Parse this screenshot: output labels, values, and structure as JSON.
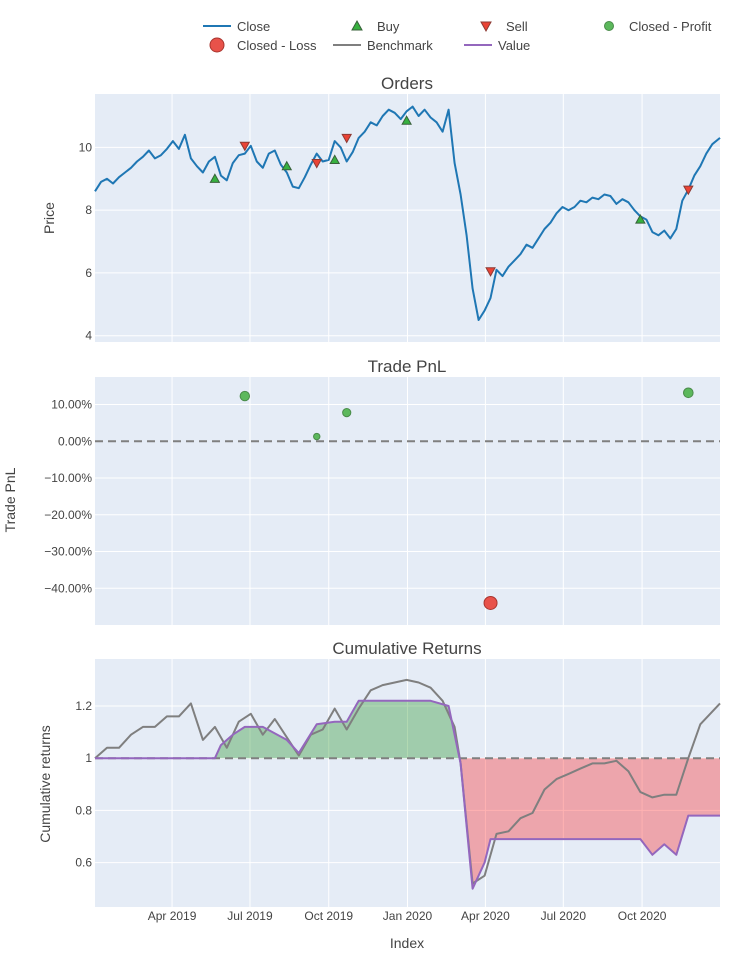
{
  "legend": {
    "items": [
      {
        "label": "Close",
        "symbol": "line",
        "color": "#1f77b4"
      },
      {
        "label": "Buy",
        "symbol": "triangle-up",
        "color": "#37b13f",
        "stroke": "#38603a"
      },
      {
        "label": "Sell",
        "symbol": "triangle-down",
        "color": "#ea4335",
        "stroke": "#8d3a33"
      },
      {
        "label": "Closed - Profit",
        "symbol": "circle",
        "color": "#5cb85c",
        "stroke": "#4a8b4a"
      },
      {
        "label": "Closed - Loss",
        "symbol": "circle-large",
        "color": "#e8524a",
        "stroke": "#a8342e"
      },
      {
        "label": "Benchmark",
        "symbol": "line",
        "color": "#7f7f7f"
      },
      {
        "label": "Value",
        "symbol": "line",
        "color": "#9467bd"
      }
    ]
  },
  "colors": {
    "plot_bg": "#e5ecf6",
    "grid": "#ffffff",
    "close": "#1f77b4",
    "benchmark": "#7f7f7f",
    "value": "#9467bd",
    "profit_fill": "rgba(0,128,0,0.3)",
    "loss_fill": "rgba(255,0,0,0.3)",
    "zero_line": "#7f7f7f",
    "text": "#444444",
    "title_text": "#444444"
  },
  "x_axis": {
    "title": "Index",
    "tick_labels": [
      "Apr 2019",
      "Jul 2019",
      "Oct 2019",
      "Jan 2020",
      "Apr 2020",
      "Jul 2020",
      "Oct 2020"
    ],
    "tick_dates": [
      "2019-04-01",
      "2019-07-01",
      "2019-10-01",
      "2020-01-01",
      "2020-04-01",
      "2020-07-01",
      "2020-10-01"
    ],
    "range": [
      "2019-01-01",
      "2020-12-31"
    ]
  },
  "chart_data": [
    {
      "type": "line",
      "title": "Orders",
      "ylabel": "Price",
      "ylim": [
        3.8,
        11.7
      ],
      "y_ticks": [
        4,
        6,
        8,
        10
      ],
      "y_tick_labels": [
        "4",
        "6",
        "8",
        "10"
      ],
      "grid": true,
      "series": [
        {
          "name": "Close",
          "x": [
            "2019-01-01",
            "2019-01-08",
            "2019-01-15",
            "2019-01-22",
            "2019-01-29",
            "2019-02-05",
            "2019-02-12",
            "2019-02-19",
            "2019-02-26",
            "2019-03-05",
            "2019-03-12",
            "2019-03-19",
            "2019-03-26",
            "2019-04-02",
            "2019-04-09",
            "2019-04-16",
            "2019-04-23",
            "2019-04-30",
            "2019-05-07",
            "2019-05-14",
            "2019-05-21",
            "2019-05-28",
            "2019-06-04",
            "2019-06-11",
            "2019-06-18",
            "2019-06-25",
            "2019-07-02",
            "2019-07-09",
            "2019-07-16",
            "2019-07-23",
            "2019-07-30",
            "2019-08-06",
            "2019-08-13",
            "2019-08-20",
            "2019-08-27",
            "2019-09-03",
            "2019-09-10",
            "2019-09-17",
            "2019-09-24",
            "2019-10-01",
            "2019-10-08",
            "2019-10-15",
            "2019-10-22",
            "2019-10-29",
            "2019-11-05",
            "2019-11-12",
            "2019-11-19",
            "2019-11-26",
            "2019-12-03",
            "2019-12-10",
            "2019-12-17",
            "2019-12-24",
            "2019-12-31",
            "2020-01-07",
            "2020-01-14",
            "2020-01-21",
            "2020-01-28",
            "2020-02-04",
            "2020-02-11",
            "2020-02-18",
            "2020-02-25",
            "2020-03-03",
            "2020-03-10",
            "2020-03-17",
            "2020-03-24",
            "2020-03-31",
            "2020-04-07",
            "2020-04-14",
            "2020-04-21",
            "2020-04-28",
            "2020-05-05",
            "2020-05-12",
            "2020-05-19",
            "2020-05-26",
            "2020-06-02",
            "2020-06-09",
            "2020-06-16",
            "2020-06-23",
            "2020-06-30",
            "2020-07-07",
            "2020-07-14",
            "2020-07-21",
            "2020-07-28",
            "2020-08-04",
            "2020-08-11",
            "2020-08-18",
            "2020-08-25",
            "2020-09-01",
            "2020-09-08",
            "2020-09-15",
            "2020-09-22",
            "2020-09-29",
            "2020-10-06",
            "2020-10-13",
            "2020-10-20",
            "2020-10-27",
            "2020-11-03",
            "2020-11-10",
            "2020-11-17",
            "2020-11-24",
            "2020-12-01",
            "2020-12-08",
            "2020-12-15",
            "2020-12-22",
            "2020-12-31"
          ],
          "values": [
            8.6,
            8.9,
            9.0,
            8.85,
            9.05,
            9.2,
            9.35,
            9.55,
            9.7,
            9.9,
            9.65,
            9.75,
            9.95,
            10.2,
            9.95,
            10.4,
            9.65,
            9.4,
            9.2,
            9.55,
            9.7,
            9.1,
            8.95,
            9.5,
            9.75,
            9.8,
            10.05,
            9.55,
            9.35,
            9.8,
            9.9,
            9.45,
            9.2,
            8.75,
            8.7,
            9.05,
            9.45,
            9.8,
            9.55,
            9.6,
            10.2,
            10.0,
            9.55,
            9.85,
            10.3,
            10.5,
            10.8,
            10.7,
            11.0,
            11.2,
            11.1,
            10.9,
            11.15,
            11.3,
            11.0,
            11.2,
            10.95,
            10.8,
            10.5,
            11.2,
            9.5,
            8.5,
            7.2,
            5.5,
            4.5,
            4.8,
            5.2,
            6.1,
            5.9,
            6.2,
            6.4,
            6.6,
            6.9,
            6.8,
            7.1,
            7.4,
            7.6,
            7.9,
            8.1,
            8.0,
            8.1,
            8.3,
            8.25,
            8.4,
            8.35,
            8.5,
            8.45,
            8.2,
            8.35,
            8.25,
            8.0,
            7.8,
            7.7,
            7.3,
            7.2,
            7.35,
            7.1,
            7.4,
            8.3,
            8.65,
            9.1,
            9.4,
            9.8,
            10.1,
            10.3
          ]
        }
      ],
      "markers": {
        "Buy": {
          "x": [
            "2019-05-21",
            "2019-08-13",
            "2019-10-08",
            "2019-12-31",
            "2020-09-29"
          ],
          "values": [
            9.0,
            9.4,
            9.6,
            10.85,
            7.7
          ]
        },
        "Sell": {
          "x": [
            "2019-06-25",
            "2019-09-17",
            "2019-10-22",
            "2020-04-07",
            "2020-11-24"
          ],
          "values": [
            10.05,
            9.5,
            10.3,
            6.05,
            8.65
          ]
        }
      }
    },
    {
      "type": "scatter",
      "title": "Trade PnL",
      "ylabel": "Trade PnL",
      "ylim": [
        -0.5,
        0.175
      ],
      "y_ticks": [
        0.1,
        0.0,
        -0.1,
        -0.2,
        -0.3,
        -0.4
      ],
      "y_tick_labels": [
        "10.00%",
        "0.00%",
        "−10.00%",
        "−20.00%",
        "−30.00%",
        "−40.00%"
      ],
      "zero_line": "dashed",
      "series": [
        {
          "name": "Closed - Profit",
          "x": [
            "2019-06-25",
            "2019-09-17",
            "2019-10-22",
            "2020-11-24"
          ],
          "values": [
            0.123,
            0.013,
            0.078,
            0.132
          ]
        },
        {
          "name": "Closed - Loss",
          "x": [
            "2020-04-07"
          ],
          "values": [
            -0.44
          ]
        }
      ]
    },
    {
      "type": "area",
      "title": "Cumulative Returns",
      "ylabel": "Cumulative returns",
      "ylim": [
        0.43,
        1.38
      ],
      "y_ticks": [
        0.6,
        0.8,
        1.0,
        1.2
      ],
      "y_tick_labels": [
        "0.6",
        "0.8",
        "1",
        "1.2"
      ],
      "baseline": 1.0,
      "baseline_style": "dashed",
      "series": [
        {
          "name": "Benchmark",
          "x": [
            "2019-01-01",
            "2019-01-15",
            "2019-01-29",
            "2019-02-12",
            "2019-02-26",
            "2019-03-12",
            "2019-03-26",
            "2019-04-09",
            "2019-04-23",
            "2019-05-07",
            "2019-05-21",
            "2019-06-04",
            "2019-06-18",
            "2019-07-02",
            "2019-07-16",
            "2019-07-30",
            "2019-08-13",
            "2019-08-27",
            "2019-09-10",
            "2019-09-24",
            "2019-10-08",
            "2019-10-22",
            "2019-11-05",
            "2019-11-19",
            "2019-12-03",
            "2019-12-17",
            "2019-12-31",
            "2020-01-14",
            "2020-01-28",
            "2020-02-11",
            "2020-02-25",
            "2020-03-03",
            "2020-03-17",
            "2020-03-31",
            "2020-04-14",
            "2020-04-28",
            "2020-05-12",
            "2020-05-26",
            "2020-06-09",
            "2020-06-23",
            "2020-07-07",
            "2020-07-21",
            "2020-08-04",
            "2020-08-18",
            "2020-09-01",
            "2020-09-15",
            "2020-09-29",
            "2020-10-13",
            "2020-10-27",
            "2020-11-10",
            "2020-11-24",
            "2020-12-08",
            "2020-12-31"
          ],
          "values": [
            1.0,
            1.04,
            1.04,
            1.09,
            1.12,
            1.12,
            1.16,
            1.16,
            1.21,
            1.07,
            1.12,
            1.04,
            1.14,
            1.17,
            1.09,
            1.15,
            1.08,
            1.01,
            1.09,
            1.11,
            1.19,
            1.11,
            1.19,
            1.26,
            1.28,
            1.29,
            1.3,
            1.29,
            1.27,
            1.22,
            1.12,
            0.98,
            0.52,
            0.55,
            0.71,
            0.72,
            0.77,
            0.79,
            0.88,
            0.92,
            0.94,
            0.96,
            0.98,
            0.98,
            0.99,
            0.95,
            0.87,
            0.85,
            0.86,
            0.86,
            1.0,
            1.13,
            1.21
          ]
        },
        {
          "name": "Value",
          "x": [
            "2019-01-01",
            "2019-05-21",
            "2019-05-28",
            "2019-06-11",
            "2019-06-25",
            "2019-07-16",
            "2019-08-13",
            "2019-08-27",
            "2019-09-17",
            "2019-10-08",
            "2019-10-22",
            "2019-11-05",
            "2019-12-31",
            "2020-01-28",
            "2020-02-18",
            "2020-03-03",
            "2020-03-17",
            "2020-03-31",
            "2020-04-07",
            "2020-09-29",
            "2020-10-13",
            "2020-10-27",
            "2020-11-10",
            "2020-11-24",
            "2020-12-31"
          ],
          "values": [
            1.0,
            1.0,
            1.05,
            1.09,
            1.12,
            1.12,
            1.07,
            1.02,
            1.13,
            1.14,
            1.14,
            1.22,
            1.22,
            1.22,
            1.2,
            0.98,
            0.5,
            0.6,
            0.69,
            0.69,
            0.63,
            0.67,
            0.63,
            0.78,
            0.78
          ]
        }
      ]
    }
  ]
}
